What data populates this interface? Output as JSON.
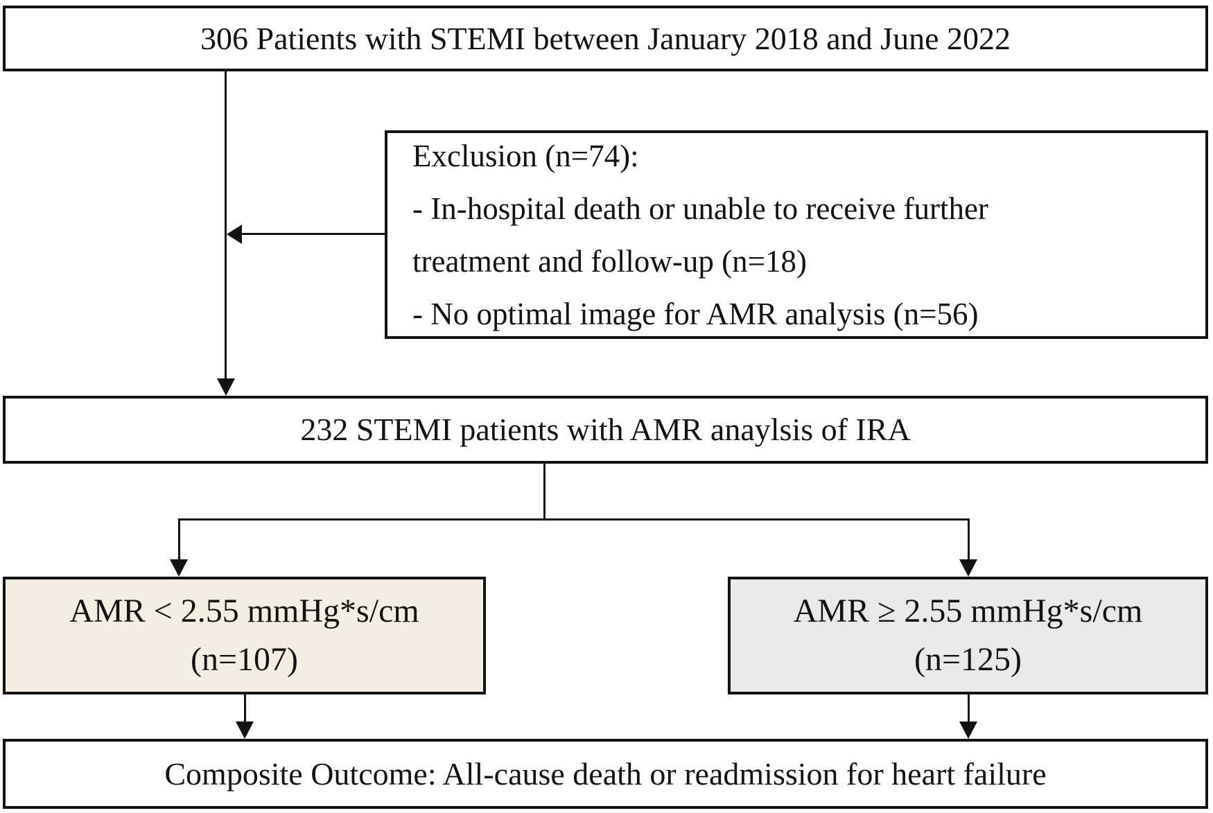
{
  "flowchart": {
    "top_box": {
      "text": "306 Patients with STEMI between January 2018 and June 2022"
    },
    "exclusion_box": {
      "lines": [
        "Exclusion (n=74):",
        "- In-hospital death or unable to receive further",
        "treatment and follow-up (n=18)",
        "- No optimal image for AMR analysis (n=56)"
      ]
    },
    "cohort_box": {
      "text": "232 STEMI patients with AMR anaylsis of IRA"
    },
    "low_amr_box": {
      "line1": "AMR < 2.55 mmHg*s/cm",
      "line2": "(n=107)",
      "fill": "#f3eee1"
    },
    "high_amr_box": {
      "line1": "AMR ≥ 2.55 mmHg*s/cm",
      "line2": "(n=125)",
      "fill": "#e8e9eb"
    },
    "outcome_box": {
      "text": "Composite Outcome: All-cause death or readmission for heart failure"
    },
    "colors": {
      "border": "#121212",
      "text": "#121212",
      "line": "#121212",
      "background": "#ffffff"
    }
  }
}
